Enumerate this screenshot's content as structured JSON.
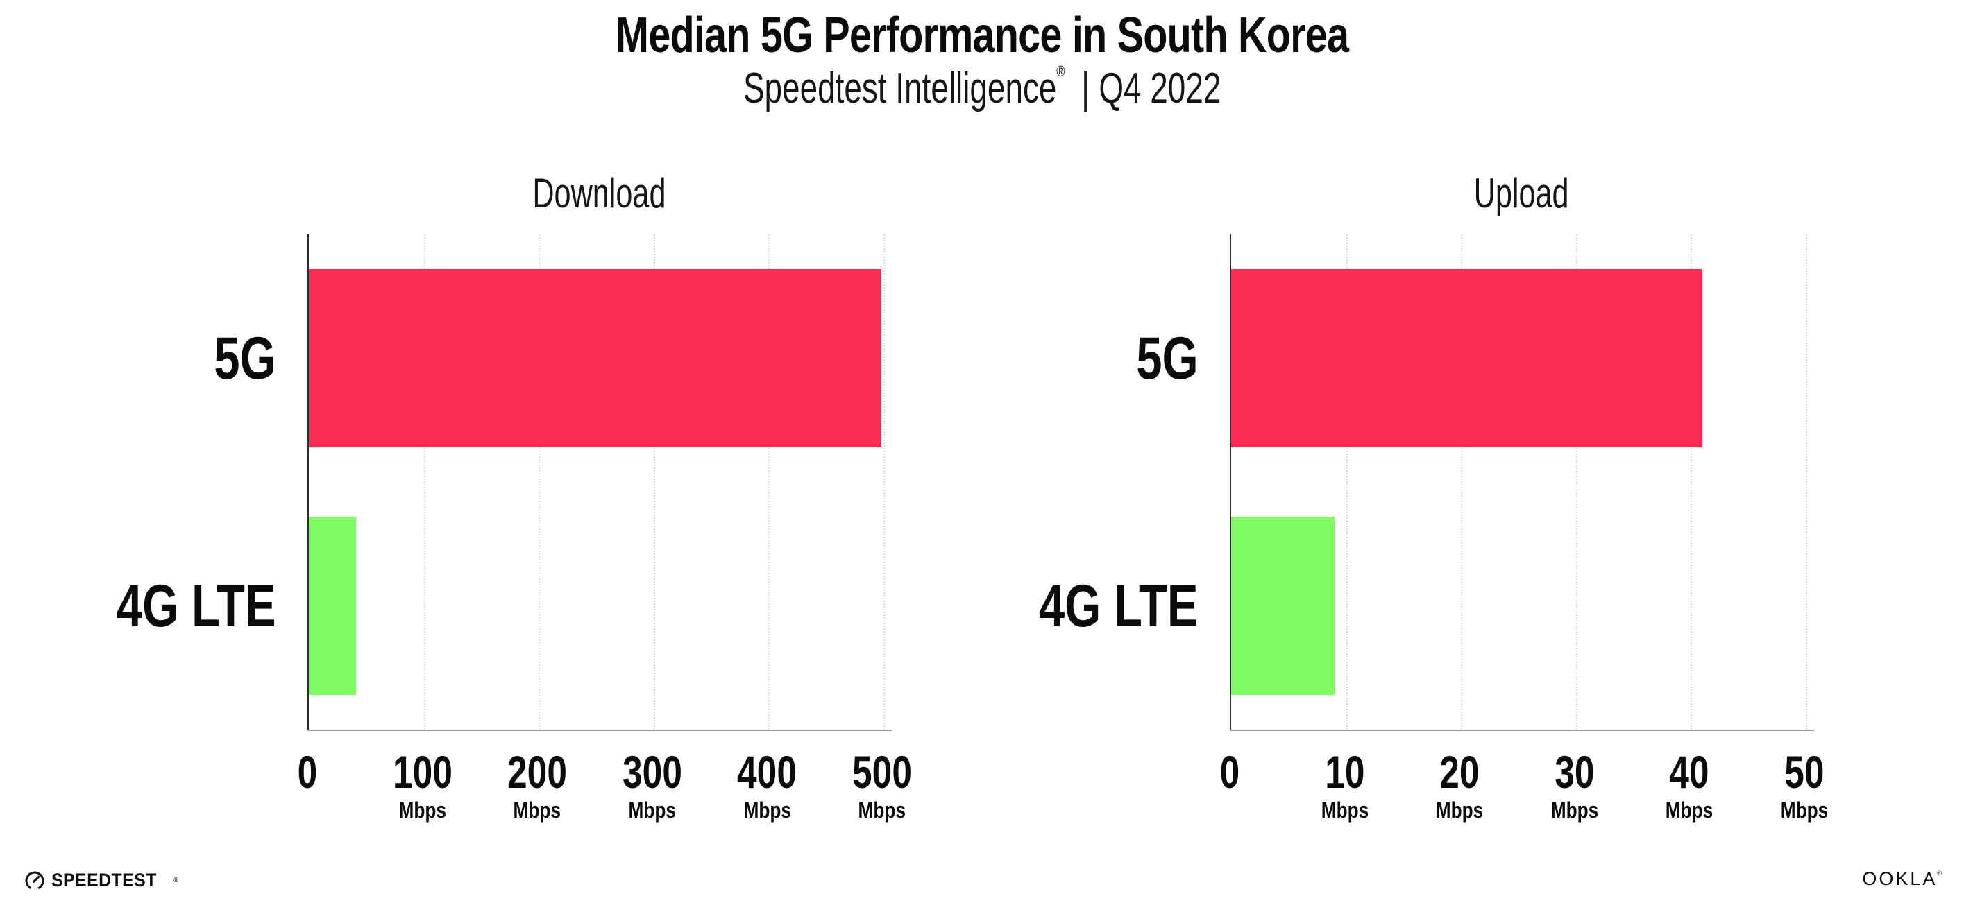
{
  "header": {
    "title": "Median 5G Performance in South Korea",
    "subtitle": {
      "brand": "Speedtest Intelligence",
      "registered_mark": "®",
      "separator": "|",
      "period": "Q4 2022"
    }
  },
  "chart_data": [
    {
      "type": "bar",
      "orientation": "horizontal",
      "title": "Download",
      "categories": [
        "5G",
        "4G LTE"
      ],
      "values": [
        498,
        41
      ],
      "bar_colors": [
        "#fd2d56",
        "#80fb66"
      ],
      "xlim": [
        0,
        500
      ],
      "x_ticks": [
        0,
        100,
        200,
        300,
        400,
        500
      ],
      "x_tick_unit": "Mbps",
      "grid": "dotted-vertical",
      "legend": "none"
    },
    {
      "type": "bar",
      "orientation": "horizontal",
      "title": "Upload",
      "categories": [
        "5G",
        "4G LTE"
      ],
      "values": [
        41,
        9
      ],
      "bar_colors": [
        "#fd2d56",
        "#80fb66"
      ],
      "xlim": [
        0,
        50
      ],
      "x_ticks": [
        0,
        10,
        20,
        30,
        40,
        50
      ],
      "x_tick_unit": "Mbps",
      "grid": "dotted-vertical",
      "legend": "none"
    }
  ],
  "footer": {
    "speedtest_logo_text": "SPEEDTEST",
    "speedtest_trademark": "®",
    "gauge_icon": "speedtest-gauge-icon",
    "ookla_logo_text": "OOKLA",
    "ookla_trademark": "®"
  },
  "colors": {
    "bar_5g": "#fd2d56",
    "bar_4g_lte": "#80fb66",
    "gridline": "#d9dae3",
    "y_axis_line": "#2c2c31",
    "x_baseline": "#9b9ba1",
    "text": "#0b0b0c",
    "background": "#ffffff"
  }
}
